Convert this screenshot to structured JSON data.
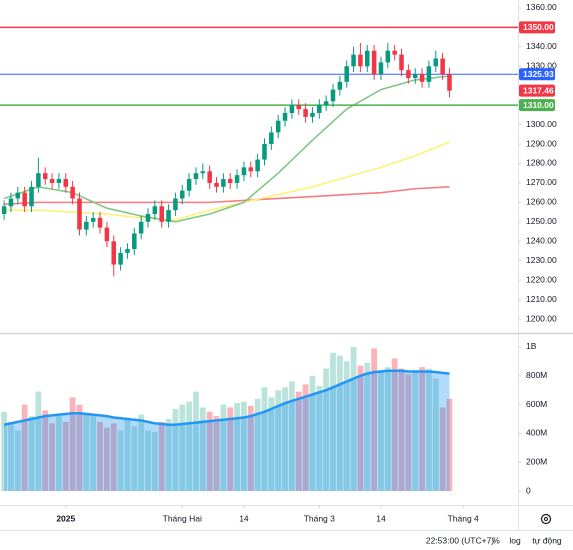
{
  "chart_data": {
    "type": "candlestick",
    "up_color": "#089981",
    "down_color": "#f23645",
    "open": [
      1254,
      1258,
      1262,
      1265,
      1258,
      1268,
      1275,
      1272,
      1270,
      1272,
      1268,
      1262,
      1246,
      1250,
      1252,
      1247,
      1240,
      1228,
      1234,
      1236,
      1244,
      1250,
      1254,
      1258,
      1250,
      1256,
      1262,
      1266,
      1272,
      1275,
      1276,
      1270,
      1268,
      1272,
      1270,
      1274,
      1278,
      1276,
      1282,
      1290,
      1296,
      1302,
      1306,
      1310,
      1308,
      1304,
      1306,
      1310,
      1312,
      1318,
      1322,
      1330,
      1336,
      1330,
      1338,
      1326,
      1332,
      1338,
      1336,
      1328,
      1324,
      1326,
      1322,
      1330,
      1334,
      1326
    ],
    "high": [
      1261,
      1265,
      1268,
      1268,
      1271,
      1283,
      1278,
      1275,
      1275,
      1275,
      1271,
      1265,
      1253,
      1255,
      1255,
      1250,
      1243,
      1237,
      1239,
      1247,
      1253,
      1257,
      1261,
      1261,
      1259,
      1265,
      1269,
      1275,
      1278,
      1280,
      1279,
      1273,
      1275,
      1275,
      1277,
      1281,
      1281,
      1285,
      1293,
      1299,
      1305,
      1309,
      1313,
      1313,
      1311,
      1309,
      1313,
      1315,
      1321,
      1325,
      1333,
      1340,
      1342,
      1341,
      1341,
      1335,
      1342,
      1341,
      1339,
      1331,
      1329,
      1329,
      1333,
      1338,
      1337,
      1329
    ],
    "low": [
      1251,
      1255,
      1259,
      1255,
      1255,
      1265,
      1269,
      1267,
      1267,
      1265,
      1259,
      1243,
      1243,
      1247,
      1244,
      1237,
      1222,
      1225,
      1231,
      1233,
      1241,
      1247,
      1251,
      1247,
      1247,
      1253,
      1259,
      1263,
      1269,
      1272,
      1267,
      1265,
      1265,
      1267,
      1267,
      1271,
      1273,
      1273,
      1279,
      1287,
      1293,
      1299,
      1303,
      1305,
      1301,
      1301,
      1303,
      1307,
      1309,
      1315,
      1319,
      1327,
      1327,
      1327,
      1323,
      1323,
      1329,
      1333,
      1325,
      1321,
      1321,
      1319,
      1319,
      1327,
      1323,
      1314
    ],
    "close": [
      1258,
      1262,
      1265,
      1258,
      1268,
      1275,
      1272,
      1270,
      1272,
      1268,
      1262,
      1246,
      1250,
      1252,
      1247,
      1240,
      1228,
      1234,
      1236,
      1244,
      1250,
      1254,
      1258,
      1250,
      1256,
      1262,
      1266,
      1272,
      1275,
      1276,
      1270,
      1268,
      1272,
      1270,
      1274,
      1278,
      1276,
      1282,
      1290,
      1296,
      1302,
      1306,
      1310,
      1308,
      1304,
      1306,
      1310,
      1312,
      1318,
      1322,
      1330,
      1336,
      1330,
      1338,
      1326,
      1332,
      1338,
      1336,
      1328,
      1324,
      1326,
      1322,
      1330,
      1334,
      1326,
      1317.46
    ],
    "last_price_label": "1317.46",
    "xlim": [
      -0.6,
      75
    ],
    "xticks": [
      {
        "value": 9,
        "label": "2025"
      },
      {
        "value": 26,
        "label": "Tháng Hai"
      },
      {
        "value": 35,
        "label": "14"
      },
      {
        "value": 46,
        "label": "Tháng 3"
      },
      {
        "value": 55,
        "label": "14"
      },
      {
        "value": 67,
        "label": "Tháng 4"
      }
    ],
    "ylim": [
      1192.8,
      1364.1
    ],
    "yticks": [
      {
        "value": 1360,
        "label": "1360.00"
      },
      {
        "value": 1340,
        "label": "1340.00"
      },
      {
        "value": 1330,
        "label": "1330.00"
      },
      {
        "value": 1300,
        "label": "1300.00"
      },
      {
        "value": 1290,
        "label": "1290.00"
      },
      {
        "value": 1280,
        "label": "1280.00"
      },
      {
        "value": 1270,
        "label": "1270.00"
      },
      {
        "value": 1260,
        "label": "1260.00"
      },
      {
        "value": 1250,
        "label": "1250.00"
      },
      {
        "value": 1240,
        "label": "1240.00"
      },
      {
        "value": 1230,
        "label": "1230.00"
      },
      {
        "value": 1220,
        "label": "1220.00"
      },
      {
        "value": 1210,
        "label": "1210.00"
      },
      {
        "value": 1200,
        "label": "1200.00"
      }
    ],
    "grid": false,
    "price_lines": [
      {
        "value": 1350,
        "label": "1350.00",
        "color": "#f23645"
      },
      {
        "value": 1325.93,
        "label": "1325.93",
        "color": "#2962ff"
      },
      {
        "value": 1310,
        "label": "1310.00",
        "color": "#4caf50"
      }
    ],
    "moving_averages": [
      {
        "color": "#f77c80",
        "x": [
          0,
          5,
          10,
          15,
          20,
          25,
          30,
          35,
          40,
          45,
          50,
          55,
          60,
          65
        ],
        "values": [
          1259,
          1260,
          1260,
          1260,
          1260,
          1260,
          1260,
          1261,
          1262,
          1263,
          1264,
          1265,
          1267,
          1268
        ]
      },
      {
        "color": "#fff176",
        "x": [
          0,
          5,
          10,
          15,
          20,
          25,
          30,
          35,
          40,
          45,
          50,
          55,
          60,
          65
        ],
        "values": [
          1256,
          1256,
          1255,
          1254,
          1252,
          1251,
          1256,
          1260,
          1264,
          1268,
          1273,
          1278,
          1284,
          1291
        ]
      },
      {
        "color": "#81c784",
        "x": [
          0,
          5,
          10,
          15,
          20,
          25,
          30,
          35,
          40,
          45,
          50,
          55,
          60,
          65
        ],
        "values": [
          1262,
          1268,
          1265,
          1257,
          1253,
          1250,
          1254,
          1260,
          1275,
          1292,
          1308,
          1318,
          1323,
          1325
        ]
      }
    ],
    "volume": {
      "up_color": "rgba(8,153,129,0.28)",
      "down_color": "rgba(242,54,69,0.38)",
      "values": [
        550,
        480,
        420,
        600,
        520,
        690,
        560,
        470,
        520,
        480,
        650,
        600,
        540,
        530,
        480,
        440,
        470,
        420,
        510,
        450,
        530,
        420,
        410,
        480,
        500,
        570,
        600,
        620,
        690,
        580,
        550,
        520,
        600,
        580,
        610,
        620,
        590,
        640,
        720,
        650,
        700,
        720,
        760,
        690,
        740,
        800,
        730,
        850,
        960,
        940,
        900,
        1000,
        870,
        890,
        990,
        840,
        860,
        920,
        850,
        810,
        830,
        860,
        850,
        780,
        580,
        640
      ],
      "ylim": [
        -97,
        1083
      ],
      "yticks": [
        0,
        {
          "value": 200,
          "label": "200M"
        },
        {
          "value": 400,
          "label": "400M"
        },
        {
          "value": 600,
          "label": "600M"
        },
        {
          "value": 800,
          "label": "800M"
        },
        {
          "value": 1000,
          "label": "1B"
        }
      ],
      "ma": {
        "color": "#2196f3",
        "fill": "rgba(33,150,243,0.35)",
        "values": [
          460,
          470,
          480,
          490,
          500,
          510,
          520,
          525,
          530,
          535,
          540,
          540,
          535,
          530,
          525,
          520,
          510,
          505,
          500,
          495,
          490,
          480,
          470,
          465,
          460,
          460,
          465,
          470,
          475,
          480,
          485,
          490,
          495,
          500,
          505,
          510,
          520,
          535,
          550,
          570,
          590,
          610,
          625,
          640,
          655,
          670,
          685,
          700,
          720,
          740,
          760,
          780,
          800,
          815,
          825,
          830,
          835,
          835,
          835,
          830,
          830,
          830,
          830,
          825,
          820,
          815
        ]
      }
    }
  },
  "footer": {
    "time": "22:53:00 (UTC+7)",
    "percent": "%",
    "log": "log",
    "auto": "tự động"
  }
}
